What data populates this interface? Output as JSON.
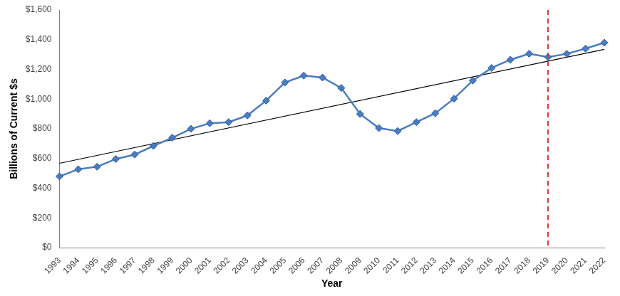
{
  "chart_data": {
    "type": "line",
    "x_label": "Year",
    "y_label": "Billions of Current $s",
    "categories": [
      "1993",
      "1994",
      "1995",
      "1996",
      "1997",
      "1998",
      "1999",
      "2000",
      "2001",
      "2002",
      "2003",
      "2004",
      "2005",
      "2006",
      "2007",
      "2008",
      "2009",
      "2010",
      "2011",
      "2012",
      "2013",
      "2014",
      "2015",
      "2016",
      "2017",
      "2018",
      "2019",
      "2020",
      "2021",
      "2022"
    ],
    "series": [
      {
        "color": "#4a7cc0",
        "marker": "diamond",
        "line_style": "solid",
        "values": [
          480,
          528,
          545,
          597,
          627,
          685,
          740,
          800,
          838,
          845,
          890,
          990,
          1112,
          1158,
          1145,
          1075,
          900,
          805,
          785,
          845,
          905,
          1003,
          1125,
          1210,
          1265,
          1305,
          1283,
          1305,
          1340,
          1380
        ]
      },
      {
        "color": "#000000",
        "marker": "none",
        "line_style": "solid",
        "values": [
          568,
          null,
          null,
          null,
          null,
          null,
          null,
          null,
          null,
          null,
          null,
          null,
          null,
          null,
          null,
          null,
          null,
          null,
          null,
          null,
          null,
          null,
          null,
          null,
          null,
          null,
          null,
          null,
          null,
          1335
        ]
      }
    ],
    "ylim": [
      0,
      1600
    ],
    "yticks": [
      {
        "value": 0,
        "label": "$0"
      },
      {
        "value": 200,
        "label": "$200"
      },
      {
        "value": 400,
        "label": "$400"
      },
      {
        "value": 600,
        "label": "$600"
      },
      {
        "value": 800,
        "label": "$800"
      },
      {
        "value": 1000,
        "label": "$1,000"
      },
      {
        "value": 1200,
        "label": "$1,200"
      },
      {
        "value": 1400,
        "label": "$1,400"
      },
      {
        "value": 1600,
        "label": "$1,600"
      }
    ],
    "annotations": [
      {
        "type": "vline",
        "x": "2019",
        "color": "#e0302a",
        "line_style": "dashed"
      }
    ],
    "grid": false
  }
}
